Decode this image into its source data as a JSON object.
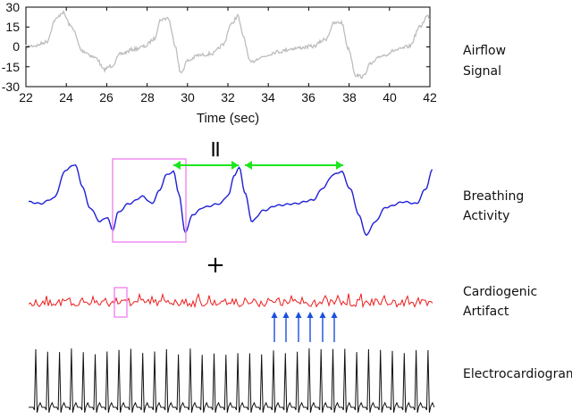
{
  "airflow_panel": {
    "y_ticks": [
      "30",
      "15",
      "0",
      "-15",
      "-30"
    ],
    "x_ticks": [
      "22",
      "24",
      "26",
      "28",
      "30",
      "32",
      "34",
      "36",
      "38",
      "40",
      "42"
    ],
    "x_label": "Time (sec)",
    "x_range": [
      22,
      42
    ],
    "y_range": [
      -30,
      30
    ],
    "signal_color": "#bdbdbd"
  },
  "labels": {
    "airflow": [
      "Airflow",
      "Signal"
    ],
    "breathing": [
      "Breathing",
      "Activity"
    ],
    "cardiogenic": [
      "Cardiogenic",
      "Artifact"
    ],
    "ecg": "Electrocardiogram"
  },
  "operators": {
    "equals": "=",
    "plus": "+"
  },
  "colors": {
    "breathing_trace": "#1f1fd6",
    "cardiogenic_trace": "#ee1c1c",
    "ecg_trace": "#111111",
    "highlight_box": "#f08ef0",
    "interval_arrows": "#1ee61e",
    "beat_arrows": "#1a4fe0"
  },
  "annotations": {
    "interval_arrow_count": 2,
    "beat_arrow_count": 6
  }
}
